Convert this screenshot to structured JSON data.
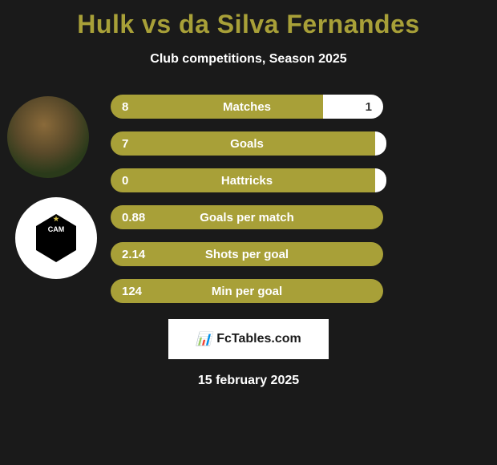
{
  "title": "Hulk vs da Silva Fernandes",
  "subtitle": "Club competitions, Season 2025",
  "colors": {
    "accent": "#a8a038",
    "background": "#1a1a1a",
    "bar_right": "#ffffff",
    "text_light": "#ffffff",
    "text_dark": "#333333"
  },
  "stats": [
    {
      "label": "Matches",
      "left_value": "8",
      "right_value": "1",
      "left_width": 265,
      "right_width": 75,
      "show_pill": true
    },
    {
      "label": "Goals",
      "left_value": "7",
      "right_value": "0",
      "left_width": 330,
      "right_width": 10,
      "show_pill": true
    },
    {
      "label": "Hattricks",
      "left_value": "0",
      "right_value": "0",
      "left_width": 330,
      "right_width": 10,
      "show_pill": false
    },
    {
      "label": "Goals per match",
      "left_value": "0.88",
      "right_value": "",
      "left_width": 340,
      "right_width": 0,
      "show_pill": false
    },
    {
      "label": "Shots per goal",
      "left_value": "2.14",
      "right_value": "",
      "left_width": 340,
      "right_width": 0,
      "show_pill": false
    },
    {
      "label": "Min per goal",
      "left_value": "124",
      "right_value": "",
      "left_width": 340,
      "right_width": 0,
      "show_pill": false
    }
  ],
  "footer": {
    "brand": "FcTables.com",
    "date": "15 february 2025"
  },
  "club_badge_text": "CAM"
}
